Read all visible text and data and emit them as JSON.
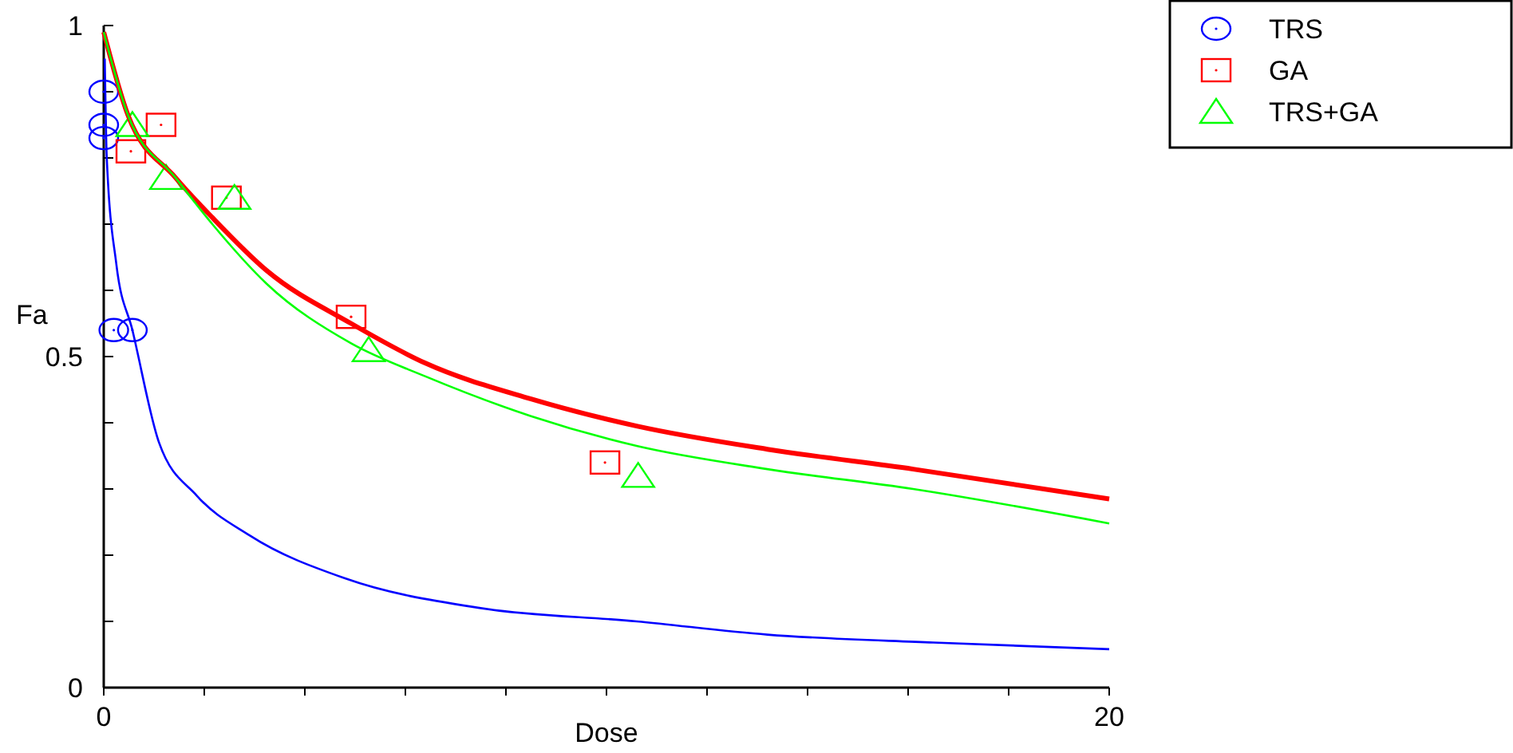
{
  "chart_data": {
    "type": "scatter",
    "xlabel": "Dose",
    "ylabel": "Fa",
    "xlim": [
      0,
      20
    ],
    "ylim": [
      0,
      1
    ],
    "xticks": [
      0,
      {
        "value": 2,
        "label": null
      },
      {
        "value": 4,
        "label": null
      },
      {
        "value": 6,
        "label": null
      },
      {
        "value": 8,
        "label": null
      },
      {
        "value": 10,
        "label": null
      },
      {
        "value": 12,
        "label": null
      },
      {
        "value": 14,
        "label": null
      },
      {
        "value": 16,
        "label": null
      },
      {
        "value": 18,
        "label": null
      },
      20
    ],
    "yticks": [
      0,
      {
        "value": 0.1,
        "label": null
      },
      {
        "value": 0.2,
        "label": null
      },
      {
        "value": 0.3,
        "label": null
      },
      {
        "value": 0.4,
        "label": null
      },
      0.5,
      {
        "value": 0.6,
        "label": null
      },
      {
        "value": 0.7,
        "label": null
      },
      {
        "value": 0.8,
        "label": null
      },
      {
        "value": 0.9,
        "label": null
      },
      1
    ],
    "grid": false,
    "legend": "top right",
    "series": [
      {
        "name": "TRS",
        "marker": "circle",
        "color": "#0000ff",
        "x": [
          0,
          0,
          0,
          0.2,
          0.57
        ],
        "values": [
          0.9,
          0.85,
          0.83,
          0.54,
          0.54
        ]
      },
      {
        "name": "GA",
        "marker": "square",
        "color": "#ff0000",
        "x": [
          0.54,
          1.14,
          2.44,
          4.92,
          9.97
        ],
        "values": [
          0.81,
          0.85,
          0.74,
          0.56,
          0.34
        ]
      },
      {
        "name": "TRS+GA",
        "marker": "triangle",
        "color": "#00ff00",
        "x": [
          0.57,
          1.24,
          2.6,
          5.27,
          10.63
        ],
        "values": [
          0.85,
          0.77,
          0.74,
          0.51,
          0.32
        ]
      },
      {
        "type": "line",
        "color": "#0000ff",
        "x": [
          0.02,
          0.06,
          0.25,
          0.57,
          1.1,
          1.85,
          2.9,
          4.8,
          7.5,
          10.6,
          13.2,
          16.5,
          20
        ],
        "values": [
          0.95,
          0.8,
          0.64,
          0.54,
          0.37,
          0.29,
          0.23,
          0.165,
          0.12,
          0.1,
          0.08,
          0.068,
          0.058
        ]
      },
      {
        "type": "line",
        "color": "#ff0000",
        "x": [
          0,
          0.48,
          1.43,
          2.16,
          3.24,
          4.92,
          6.4,
          8.5,
          10.6,
          13.2,
          16.1,
          20
        ],
        "values": [
          0.99,
          0.865,
          0.77,
          0.71,
          0.63,
          0.55,
          0.49,
          0.436,
          0.395,
          0.36,
          0.33,
          0.285
        ]
      },
      {
        "type": "line",
        "color": "#00ff00",
        "x": [
          0,
          0.48,
          1.43,
          2.16,
          3.24,
          4.92,
          6.4,
          8.5,
          10.6,
          13.2,
          16.1,
          20
        ],
        "values": [
          0.99,
          0.865,
          0.77,
          0.7,
          0.61,
          0.52,
          0.47,
          0.41,
          0.365,
          0.33,
          0.3,
          0.248
        ]
      }
    ]
  }
}
